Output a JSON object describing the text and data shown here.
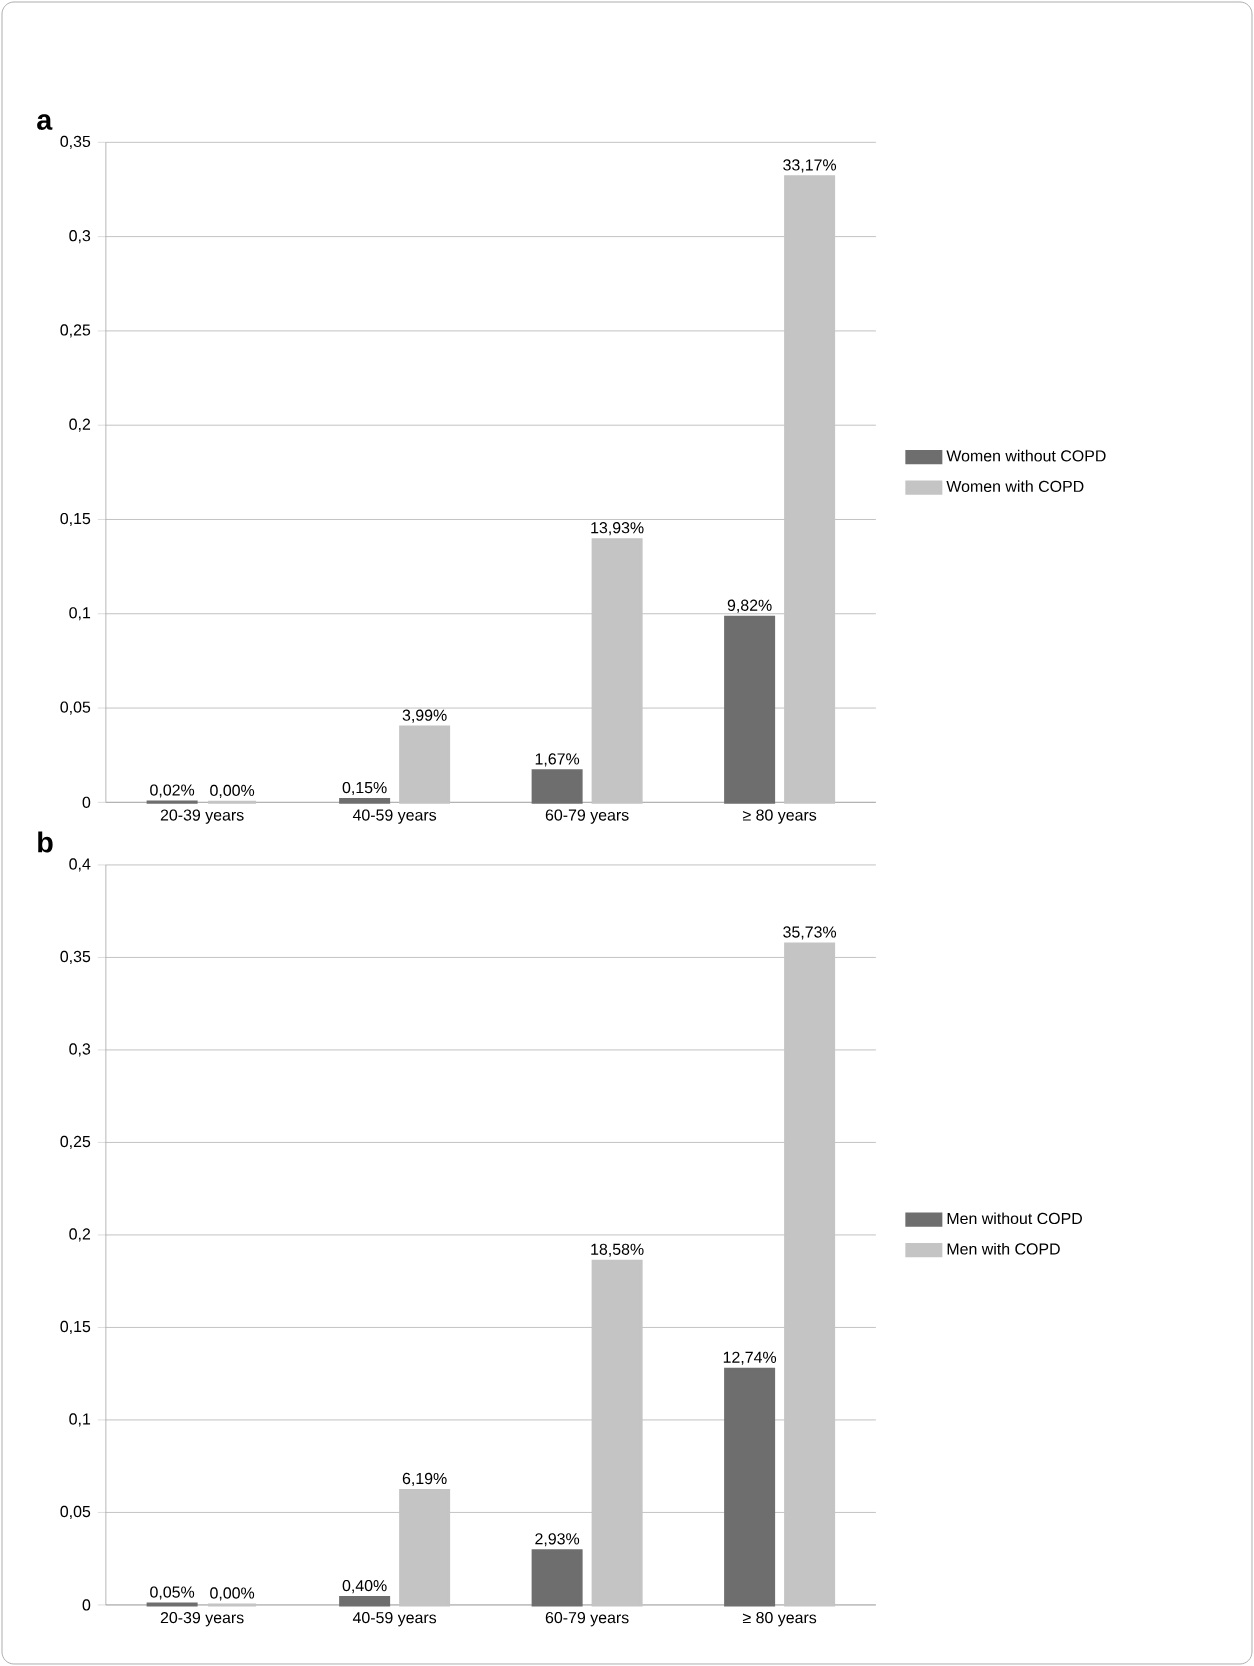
{
  "chart_data": [
    {
      "type": "bar",
      "title": "a",
      "categories": [
        "20-39 years",
        "40-59 years",
        "60-79 years",
        "≥ 80 years"
      ],
      "series": [
        {
          "name": "Women without COPD",
          "color": "#6e6e6e",
          "values": [
            0.0002,
            0.0015,
            0.0167,
            0.0982
          ],
          "value_labels": [
            "0,02%",
            "0,15%",
            "1,67%",
            "9,82%"
          ]
        },
        {
          "name": "Women with COPD",
          "color": "#c4c4c4",
          "values": [
            0.0,
            0.0399,
            0.1393,
            0.3317
          ],
          "value_labels": [
            "0,00%",
            "3,99%",
            "13,93%",
            "33,17%"
          ]
        }
      ],
      "ylim": [
        0,
        0.35
      ],
      "yticks": [
        0,
        {
          "value": 0.05,
          "label": "0,05"
        },
        {
          "value": 0.1,
          "label": "0,1"
        },
        {
          "value": 0.15,
          "label": "0,15"
        },
        {
          "value": 0.2,
          "label": "0,2"
        },
        {
          "value": 0.25,
          "label": "0,25"
        },
        {
          "value": 0.3,
          "label": "0,3"
        },
        {
          "value": 0.35,
          "label": "0,35"
        }
      ],
      "grid": "y",
      "legend": "right"
    },
    {
      "type": "bar",
      "title": "b",
      "categories": [
        "20-39 years",
        "40-59 years",
        "60-79 years",
        "≥ 80 years"
      ],
      "series": [
        {
          "name": "Men without COPD",
          "color": "#6e6e6e",
          "values": [
            0.0005,
            0.004,
            0.0293,
            0.1274
          ],
          "value_labels": [
            "0,05%",
            "0,40%",
            "2,93%",
            "12,74%"
          ]
        },
        {
          "name": "Men with COPD",
          "color": "#c4c4c4",
          "values": [
            0.0,
            0.0619,
            0.1858,
            0.3573
          ],
          "value_labels": [
            "0,00%",
            "6,19%",
            "18,58%",
            "35,73%"
          ]
        }
      ],
      "ylim": [
        0,
        0.4
      ],
      "yticks": [
        0,
        {
          "value": 0.05,
          "label": "0,05"
        },
        {
          "value": 0.1,
          "label": "0,1"
        },
        {
          "value": 0.15,
          "label": "0,15"
        },
        {
          "value": 0.2,
          "label": "0,2"
        },
        {
          "value": 0.25,
          "label": "0,25"
        },
        {
          "value": 0.3,
          "label": "0,3"
        },
        {
          "value": 0.35,
          "label": "0,35"
        },
        {
          "value": 0.4,
          "label": "0,4"
        }
      ],
      "grid": "y",
      "legend": "right"
    }
  ]
}
